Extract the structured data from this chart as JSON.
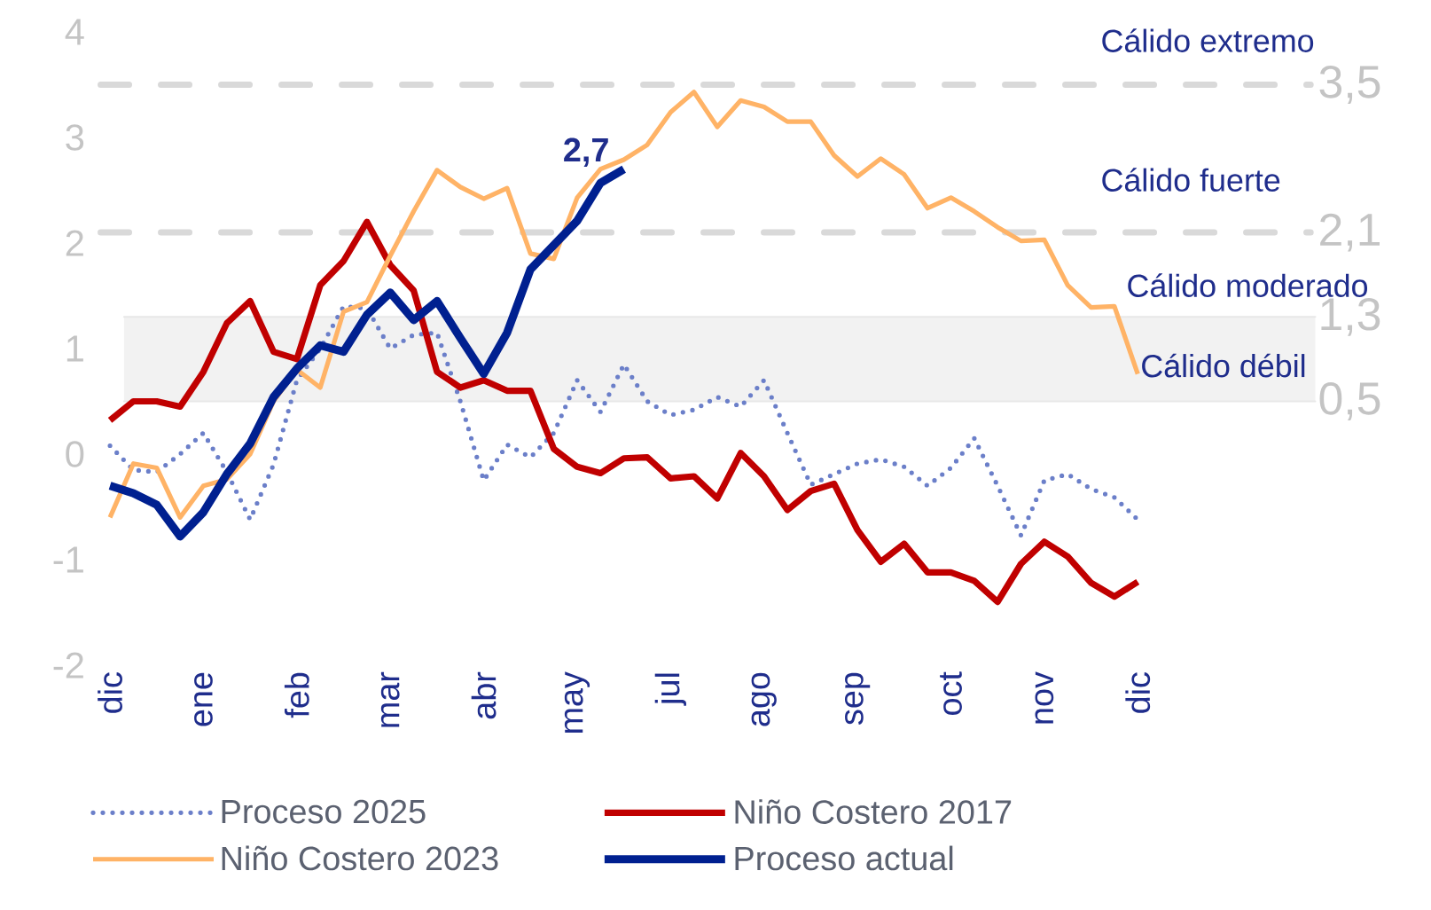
{
  "chart_data": {
    "type": "line",
    "legend": "bottom",
    "ylim": [
      -2,
      4
    ],
    "categories": [
      "dic",
      null,
      null,
      null,
      "ene",
      null,
      null,
      null,
      "feb",
      null,
      null,
      null,
      "mar",
      null,
      null,
      null,
      "abr",
      null,
      null,
      null,
      "may",
      null,
      null,
      null,
      "jul",
      null,
      null,
      null,
      "ago",
      null,
      null,
      null,
      "sep",
      null,
      null,
      null,
      "oct",
      null,
      null,
      null,
      "nov",
      null,
      null,
      null,
      "dic"
    ],
    "yticks": [
      -2,
      -1,
      0,
      1,
      2,
      3,
      4
    ],
    "ref_lines": [
      {
        "axis": "y",
        "value": 3.5,
        "label": "3,5",
        "color": "#d9d9d9",
        "line_style": "dashed"
      },
      {
        "axis": "y",
        "value": 2.1,
        "label": "2,1",
        "color": "#d9d9d9",
        "line_style": "dashed"
      },
      {
        "axis": "y",
        "value": 1.3,
        "label": "1,3",
        "color": "#e8e8e8",
        "line_style": "solid"
      },
      {
        "axis": "y",
        "value": 0.5,
        "label": "0,5",
        "color": "#e8e8e8",
        "line_style": "solid"
      }
    ],
    "bands": [
      {
        "axis": "y",
        "from": 0.5,
        "to": 1.3,
        "color": "#f2f2f2"
      }
    ],
    "annotations": [
      "Cálido extremo",
      "Cálido fuerte",
      "Cálido moderado",
      "Cálido débil",
      "2,7"
    ],
    "series": [
      {
        "name": "Proceso 2025",
        "color": "#6b7fc9",
        "line_style": "dotted",
        "values": [
          0.08,
          -0.15,
          -0.17,
          0.0,
          0.2,
          -0.17,
          -0.62,
          -0.1,
          0.7,
          1.0,
          1.4,
          1.38,
          1.0,
          1.13,
          1.15,
          0.5,
          -0.25,
          0.09,
          -0.03,
          0.2,
          0.7,
          0.4,
          0.85,
          0.5,
          0.37,
          0.42,
          0.54,
          0.45,
          0.7,
          0.2,
          -0.29,
          -0.19,
          -0.09,
          -0.05,
          -0.12,
          -0.3,
          -0.13,
          0.15,
          -0.3,
          -0.77,
          -0.25,
          -0.19,
          -0.33,
          -0.41,
          -0.62
        ]
      },
      {
        "name": "Niño Costero 2017",
        "color": "#c00000",
        "line_style": "solid",
        "values": [
          0.32,
          0.5,
          0.5,
          0.45,
          0.78,
          1.24,
          1.45,
          0.97,
          0.9,
          1.6,
          1.83,
          2.2,
          1.79,
          1.55,
          0.78,
          0.63,
          0.7,
          0.6,
          0.6,
          0.05,
          -0.12,
          -0.18,
          -0.04,
          -0.03,
          -0.23,
          -0.21,
          -0.42,
          0.01,
          -0.21,
          -0.53,
          -0.35,
          -0.28,
          -0.72,
          -1.02,
          -0.85,
          -1.12,
          -1.12,
          -1.2,
          -1.4,
          -1.04,
          -0.83,
          -0.97,
          -1.22,
          -1.35,
          -1.21
        ]
      },
      {
        "name": "Niño Costero 2023",
        "color": "#ffb366",
        "line_style": "solid",
        "values": [
          -0.6,
          -0.09,
          -0.13,
          -0.6,
          -0.3,
          -0.24,
          0.0,
          0.5,
          0.8,
          0.63,
          1.35,
          1.44,
          1.88,
          2.3,
          2.69,
          2.53,
          2.42,
          2.52,
          1.9,
          1.85,
          2.43,
          2.7,
          2.79,
          2.93,
          3.24,
          3.43,
          3.1,
          3.35,
          3.29,
          3.15,
          3.15,
          2.83,
          2.63,
          2.8,
          2.65,
          2.33,
          2.43,
          2.3,
          2.15,
          2.02,
          2.03,
          1.6,
          1.39,
          1.4,
          0.76
        ]
      },
      {
        "name": "Proceso actual",
        "color": "#002090",
        "line_style": "solid",
        "values": [
          -0.3,
          -0.37,
          -0.48,
          -0.78,
          -0.55,
          -0.19,
          0.1,
          0.54,
          0.81,
          1.03,
          0.97,
          1.32,
          1.53,
          1.27,
          1.45,
          1.1,
          0.76,
          1.15,
          1.75,
          1.98,
          2.21,
          2.57,
          2.7,
          null,
          null,
          null,
          null,
          null,
          null,
          null,
          null,
          null,
          null,
          null,
          null,
          null,
          null,
          null,
          null,
          null,
          null,
          null,
          null,
          null,
          null
        ]
      }
    ]
  }
}
